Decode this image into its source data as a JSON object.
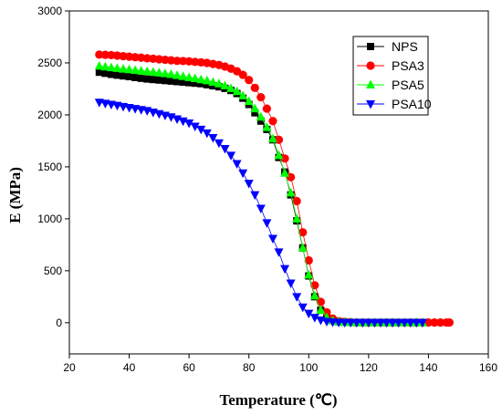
{
  "chart_data": {
    "type": "line",
    "xlabel": "Temperature (℃)",
    "ylabel": "E (MPa)",
    "xlim": [
      20,
      160
    ],
    "ylim": [
      -300,
      3000
    ],
    "xticks": [
      20,
      40,
      60,
      80,
      100,
      120,
      140,
      160
    ],
    "yticks": [
      0,
      500,
      1000,
      1500,
      2000,
      2500,
      3000
    ],
    "x_tick_labels": [
      "20",
      "40",
      "60",
      "80",
      "100",
      "120",
      "140",
      "160"
    ],
    "y_tick_labels": [
      "0",
      "500",
      "1000",
      "1500",
      "2000",
      "2500",
      "3000"
    ],
    "grid": false,
    "legend_position": "top-right",
    "series": [
      {
        "name": "NPS",
        "color": "#000000",
        "marker": "square",
        "x": [
          30,
          32,
          34,
          36,
          38,
          40,
          42,
          44,
          46,
          48,
          50,
          52,
          54,
          56,
          58,
          60,
          62,
          64,
          66,
          68,
          70,
          72,
          74,
          76,
          78,
          80,
          82,
          84,
          86,
          88,
          90,
          92,
          94,
          96,
          98,
          100,
          102,
          104,
          106,
          108,
          110,
          112,
          114,
          116,
          118,
          120,
          122,
          124,
          126,
          128,
          130,
          132,
          134,
          136,
          138
        ],
        "y": [
          2410,
          2400,
          2390,
          2382,
          2375,
          2368,
          2360,
          2352,
          2345,
          2340,
          2335,
          2330,
          2325,
          2320,
          2315,
          2310,
          2305,
          2300,
          2290,
          2280,
          2270,
          2255,
          2235,
          2205,
          2160,
          2100,
          2020,
          1940,
          1860,
          1760,
          1590,
          1450,
          1230,
          980,
          720,
          450,
          250,
          120,
          50,
          20,
          10,
          5,
          3,
          2,
          2,
          2,
          2,
          2,
          2,
          2,
          2,
          2,
          2,
          2,
          2
        ]
      },
      {
        "name": "PSA3",
        "color": "#ff0000",
        "marker": "circle",
        "x": [
          30,
          32,
          34,
          36,
          38,
          40,
          42,
          44,
          46,
          48,
          50,
          52,
          54,
          56,
          58,
          60,
          62,
          64,
          66,
          68,
          70,
          72,
          74,
          76,
          78,
          80,
          82,
          84,
          86,
          88,
          90,
          92,
          94,
          96,
          98,
          100,
          102,
          104,
          106,
          108,
          110,
          112,
          114,
          116,
          118,
          120,
          122,
          124,
          126,
          128,
          130,
          132,
          134,
          136,
          138,
          140,
          142,
          144,
          146,
          147
        ],
        "y": [
          2580,
          2578,
          2575,
          2570,
          2565,
          2560,
          2555,
          2550,
          2545,
          2540,
          2535,
          2530,
          2525,
          2520,
          2518,
          2515,
          2510,
          2505,
          2500,
          2490,
          2480,
          2465,
          2445,
          2420,
          2385,
          2335,
          2260,
          2170,
          2060,
          1940,
          1760,
          1580,
          1400,
          1170,
          870,
          600,
          360,
          200,
          100,
          40,
          15,
          8,
          5,
          3,
          2,
          2,
          2,
          2,
          2,
          2,
          2,
          2,
          2,
          2,
          2,
          2,
          2,
          2,
          2,
          2
        ]
      },
      {
        "name": "PSA5",
        "color": "#00ff00",
        "marker": "triangle-up",
        "x": [
          30,
          32,
          34,
          36,
          38,
          40,
          42,
          44,
          46,
          48,
          50,
          52,
          54,
          56,
          58,
          60,
          62,
          64,
          66,
          68,
          70,
          72,
          74,
          76,
          78,
          80,
          82,
          84,
          86,
          88,
          90,
          92,
          94,
          96,
          98,
          100,
          102,
          104,
          106,
          108,
          110,
          112,
          114,
          116,
          118,
          120,
          122,
          124,
          126,
          128,
          130,
          132,
          134,
          136,
          138
        ],
        "y": [
          2470,
          2462,
          2455,
          2448,
          2442,
          2436,
          2430,
          2424,
          2418,
          2412,
          2405,
          2398,
          2390,
          2380,
          2370,
          2360,
          2350,
          2340,
          2330,
          2315,
          2300,
          2280,
          2255,
          2225,
          2185,
          2130,
          2060,
          1980,
          1880,
          1770,
          1610,
          1440,
          1250,
          1000,
          720,
          460,
          260,
          120,
          50,
          20,
          10,
          5,
          3,
          2,
          2,
          2,
          2,
          2,
          2,
          2,
          2,
          2,
          2,
          2,
          2
        ]
      },
      {
        "name": "PSA10",
        "color": "#0000ff",
        "marker": "triangle-down",
        "x": [
          30,
          32,
          34,
          36,
          38,
          40,
          42,
          44,
          46,
          48,
          50,
          52,
          54,
          56,
          58,
          60,
          62,
          64,
          66,
          68,
          70,
          72,
          74,
          76,
          78,
          80,
          82,
          84,
          86,
          88,
          90,
          92,
          94,
          96,
          98,
          100,
          102,
          104,
          106,
          108,
          110,
          112,
          114,
          116,
          118,
          120,
          122,
          124,
          126,
          128,
          130,
          132,
          134,
          136,
          138
        ],
        "y": [
          2120,
          2110,
          2100,
          2090,
          2080,
          2070,
          2060,
          2050,
          2040,
          2025,
          2010,
          1995,
          1980,
          1960,
          1940,
          1920,
          1890,
          1860,
          1825,
          1780,
          1730,
          1675,
          1610,
          1530,
          1440,
          1340,
          1230,
          1100,
          960,
          810,
          680,
          520,
          380,
          250,
          150,
          90,
          50,
          25,
          12,
          6,
          3,
          2,
          2,
          2,
          2,
          2,
          2,
          2,
          2,
          2,
          2,
          2,
          2,
          2,
          2
        ]
      }
    ]
  }
}
